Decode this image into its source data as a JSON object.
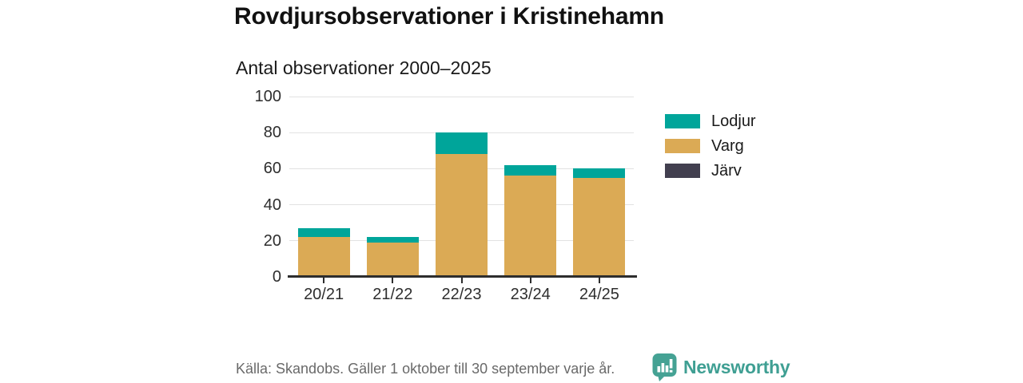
{
  "header": {
    "title": "Rovdjursobservationer i Kristinehamn",
    "subtitle": "Antal observationer 2000–2025"
  },
  "chart_data": {
    "type": "bar",
    "stacked": true,
    "title": "Rovdjursobservationer i Kristinehamn",
    "subtitle": "Antal observationer 2000–2025",
    "categories": [
      "20/21",
      "21/22",
      "22/23",
      "23/24",
      "24/25"
    ],
    "series": [
      {
        "name": "Järv",
        "color": "#423f4f",
        "values": [
          0,
          1,
          0,
          0,
          0
        ]
      },
      {
        "name": "Varg",
        "color": "#dbaa55",
        "values": [
          22,
          18,
          68,
          56,
          55
        ]
      },
      {
        "name": "Lodjur",
        "color": "#00a59a",
        "values": [
          5,
          3,
          12,
          6,
          5
        ]
      }
    ],
    "totals": [
      27,
      22,
      80,
      62,
      60
    ],
    "legend_order": [
      "Lodjur",
      "Varg",
      "Järv"
    ],
    "legend_position": "right",
    "xlabel": "",
    "ylabel": "",
    "ylim": [
      0,
      100
    ],
    "yticks": [
      0,
      20,
      40,
      60,
      80,
      100
    ],
    "grid": true
  },
  "footer": {
    "source": "Källa: Skandobs. Gäller 1 oktober till 30 september varje år.",
    "brand": "Newsworthy"
  },
  "colors": {
    "accent_teal": "#00a59a",
    "accent_gold": "#dbaa55",
    "accent_dark": "#423f4f",
    "brand_teal": "#3f9f93",
    "axis": "#2d2d2d",
    "grid": "#e2e2e2",
    "source_text": "#696969"
  }
}
